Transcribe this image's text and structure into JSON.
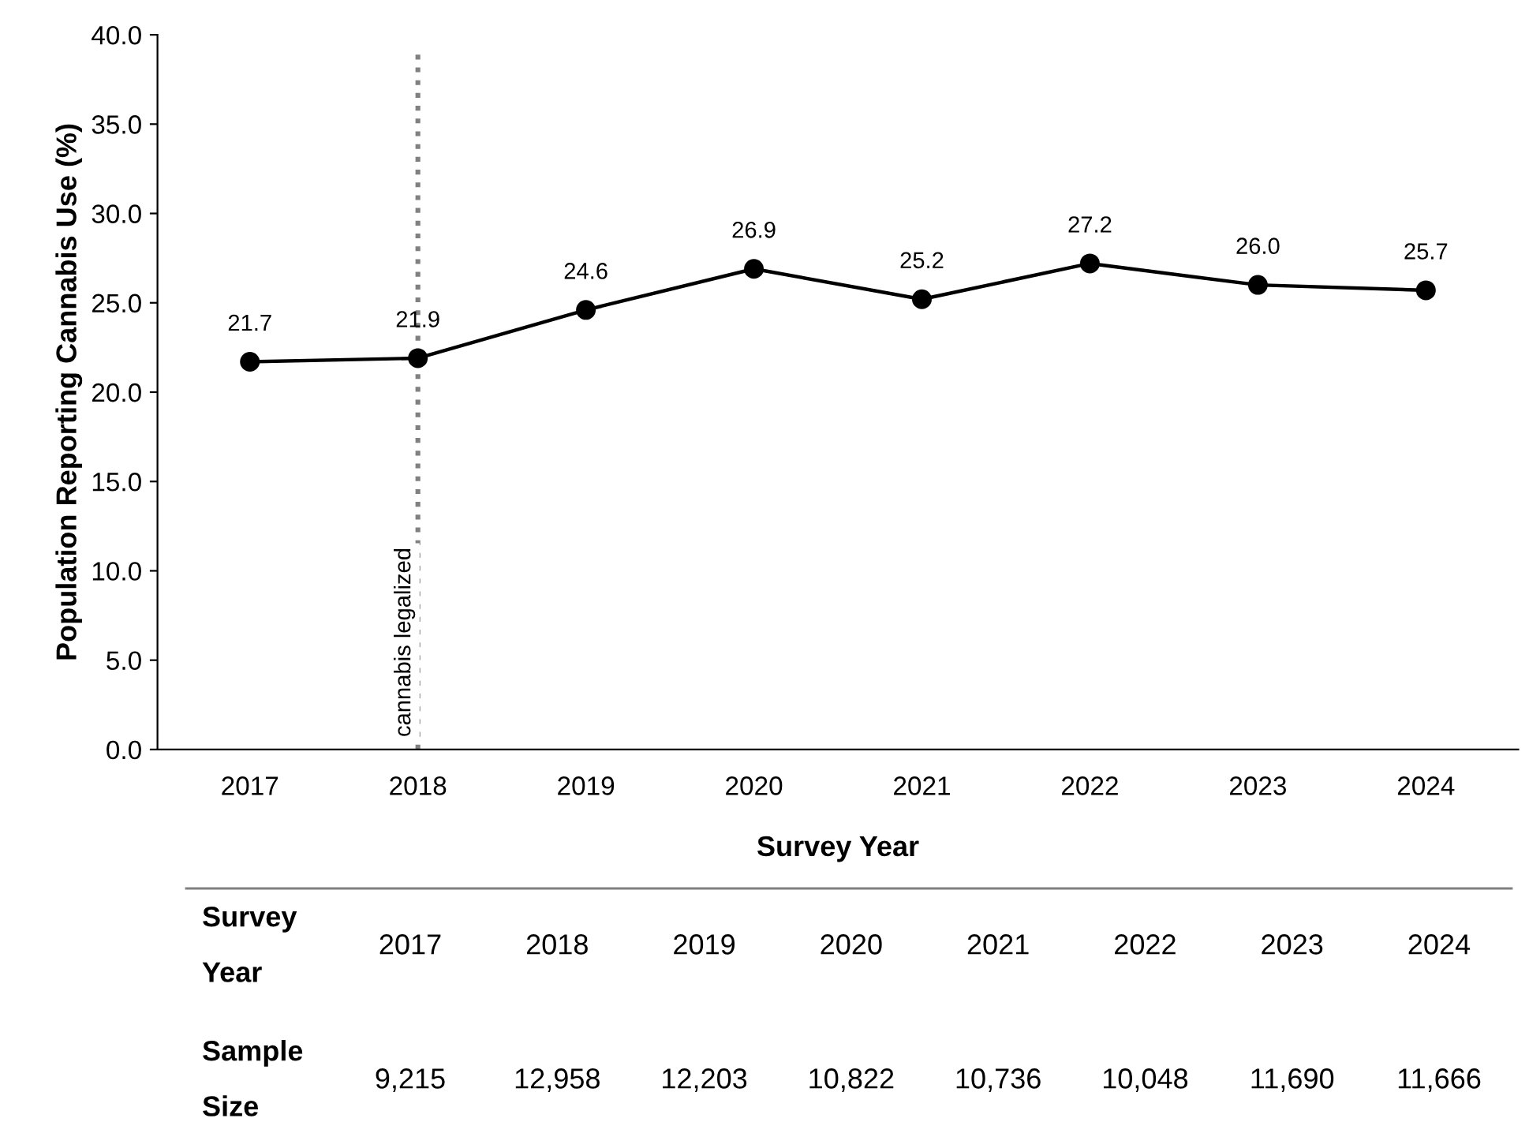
{
  "chart_data": {
    "type": "line",
    "xlabel": "Survey Year",
    "ylabel": "Population Reporting Cannabis Use (%)",
    "categories": [
      "2017",
      "2018",
      "2019",
      "2020",
      "2021",
      "2022",
      "2023",
      "2024"
    ],
    "series": [
      {
        "color": "#000000",
        "values": [
          21.7,
          21.9,
          24.6,
          26.9,
          25.2,
          27.2,
          26.0,
          25.7
        ]
      }
    ],
    "ylim": [
      0,
      40
    ],
    "yticks": [
      {
        "value": 0,
        "label": "0.0"
      },
      {
        "value": 5,
        "label": "5.0"
      },
      {
        "value": 10,
        "label": "10.0"
      },
      {
        "value": 15,
        "label": "15.0"
      },
      {
        "value": 20,
        "label": "20.0"
      },
      {
        "value": 25,
        "label": "25.0"
      },
      {
        "value": 30,
        "label": "30.0"
      },
      {
        "value": 35,
        "label": "35.0"
      },
      {
        "value": 40,
        "label": "40.0"
      }
    ],
    "value_labels": [
      "21.7",
      "21.9",
      "24.6",
      "26.9",
      "25.2",
      "27.2",
      "26.0",
      "25.7"
    ],
    "marker": "circle",
    "line_style": "solid",
    "grid": false,
    "ref_lines": [
      {
        "axis": "x",
        "value": "2018",
        "label": "cannabis legalized",
        "color": "#808080",
        "line_style": "dotted"
      }
    ],
    "annotations": [
      "Survey\nYear",
      "Sample\nSize",
      "9,215",
      "12,958",
      "12,203",
      "10,822",
      "10,736",
      "10,048",
      "11,690",
      "11,666"
    ]
  }
}
